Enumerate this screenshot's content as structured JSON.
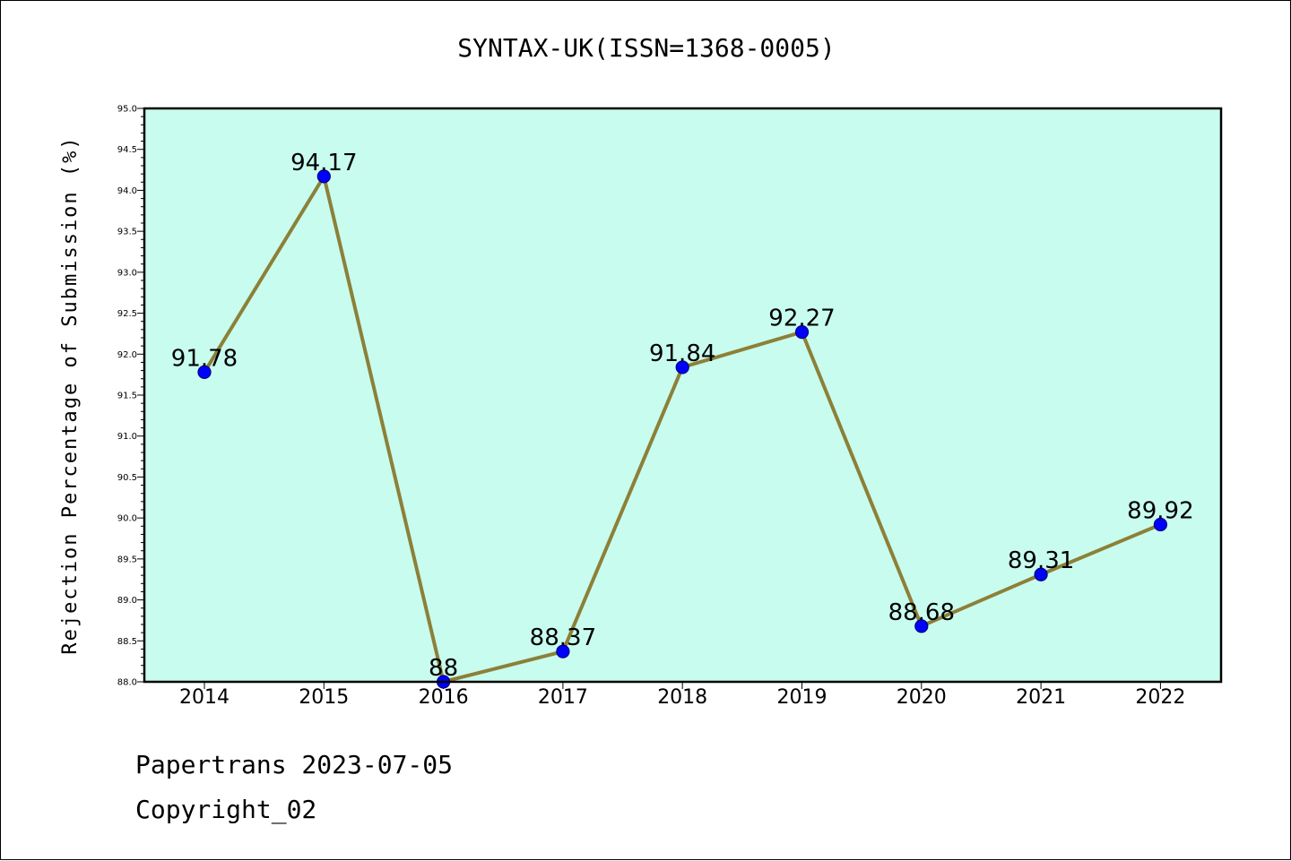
{
  "page": {
    "title": "SYNTAX-UK(ISSN=1368-0005)",
    "footer_line1": "Papertrans 2023-07-05",
    "footer_line2": "Copyright_02"
  },
  "colors": {
    "plot_bg": "#c8fcee",
    "line": "#8c8038",
    "marker_fill": "#0000ff",
    "marker_edge": "#000080"
  },
  "chart_data": {
    "type": "line",
    "title": "SYNTAX-UK(ISSN=1368-0005)",
    "xlabel": "",
    "ylabel": "Rejection Percentage of Submission (%)",
    "categories": [
      "2014",
      "2015",
      "2016",
      "2017",
      "2018",
      "2019",
      "2020",
      "2021",
      "2022"
    ],
    "series": [
      {
        "values": [
          91.78,
          94.17,
          88,
          88.37,
          91.84,
          92.27,
          88.68,
          89.31,
          89.92
        ],
        "labels": [
          "91.78",
          "94.17",
          "88",
          "88.37",
          "91.84",
          "92.27",
          "88.68",
          "89.31",
          "89.92"
        ]
      }
    ],
    "ylim": [
      88.0,
      95.0
    ],
    "yticks": [
      "88.0",
      "88.5",
      "89.0",
      "89.5",
      "90.0",
      "90.5",
      "91.0",
      "91.5",
      "92.0",
      "92.5",
      "93.0",
      "93.5",
      "94.0",
      "94.5",
      "95.0"
    ],
    "grid": false,
    "legend": "none"
  }
}
